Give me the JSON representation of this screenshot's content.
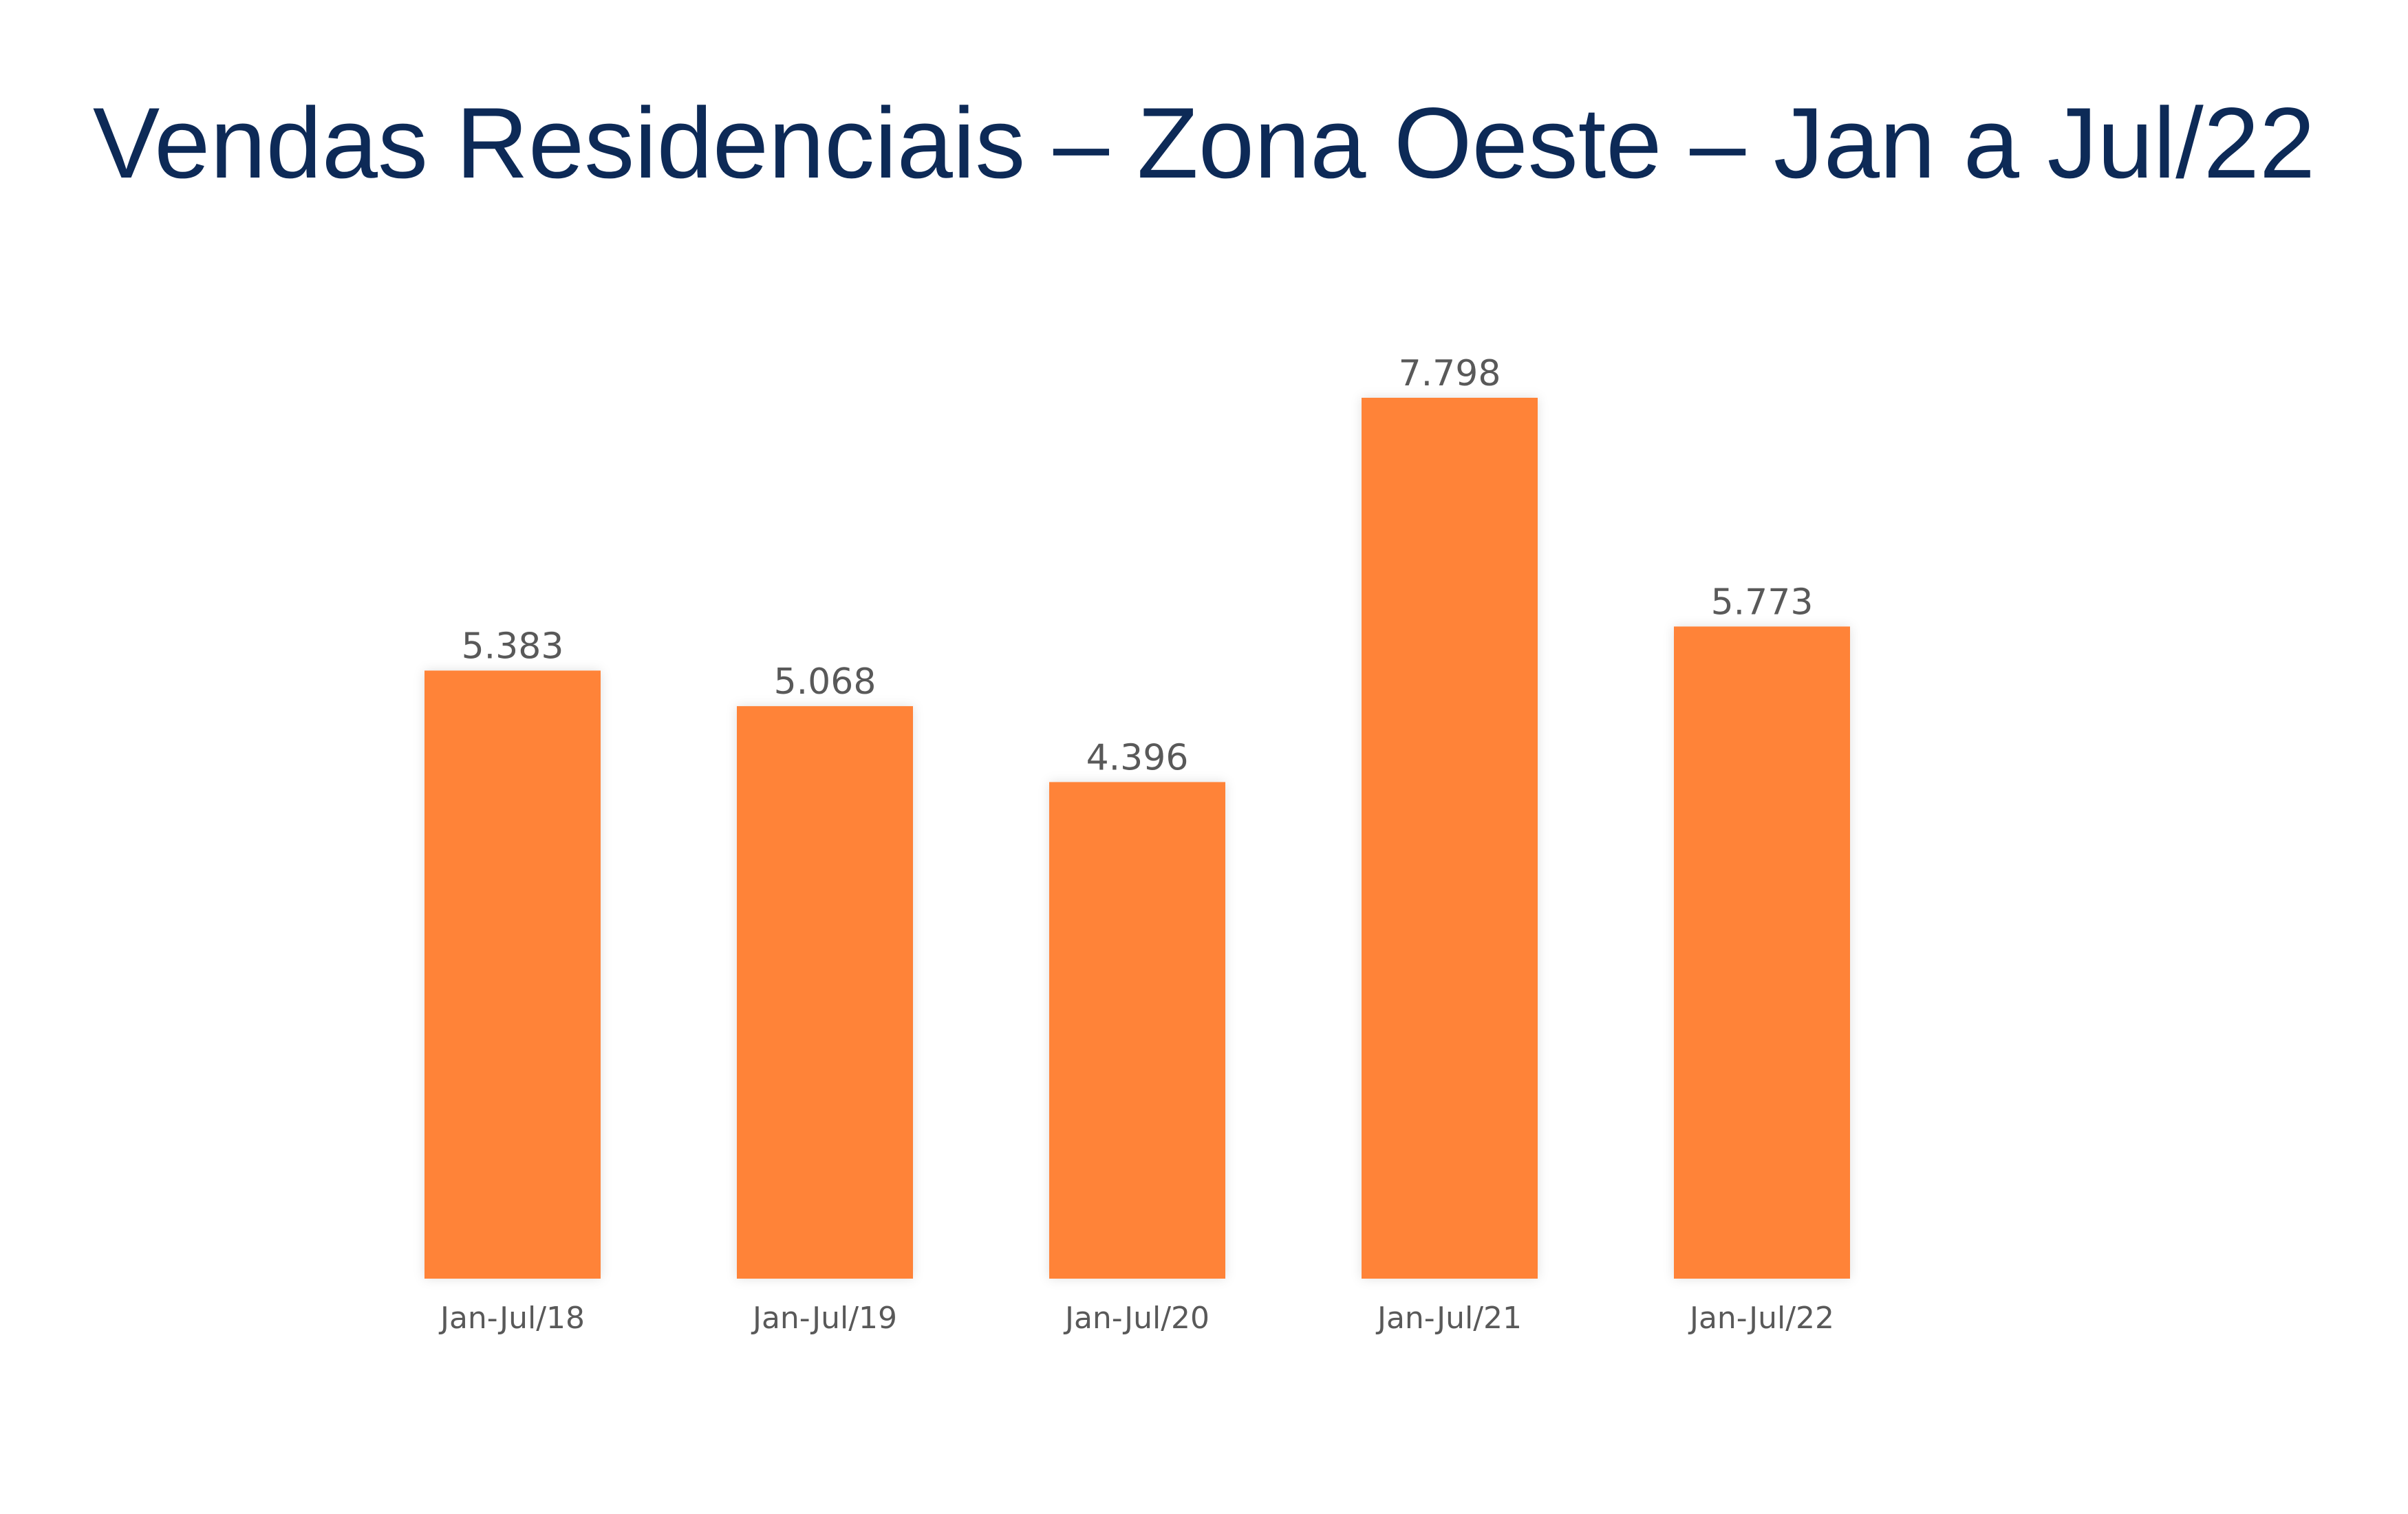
{
  "colors": {
    "bar": "#ff8339",
    "title": "#0d2a57",
    "label": "#595959",
    "background": "#ffffff"
  },
  "chart_data": {
    "type": "bar",
    "title": "Vendas Residenciais – Zona Oeste – Jan a Jul/22",
    "xlabel": "",
    "ylabel": "",
    "categories": [
      "Jan-Jul/18",
      "Jan-Jul/19",
      "Jan-Jul/20",
      "Jan-Jul/21",
      "Jan-Jul/22"
    ],
    "values": [
      5383,
      5068,
      4396,
      7798,
      5773
    ],
    "value_labels": [
      "5.383",
      "5.068",
      "4.396",
      "7.798",
      "5.773"
    ],
    "ylim": [
      0,
      7798
    ],
    "grid": false,
    "legend": "none"
  }
}
